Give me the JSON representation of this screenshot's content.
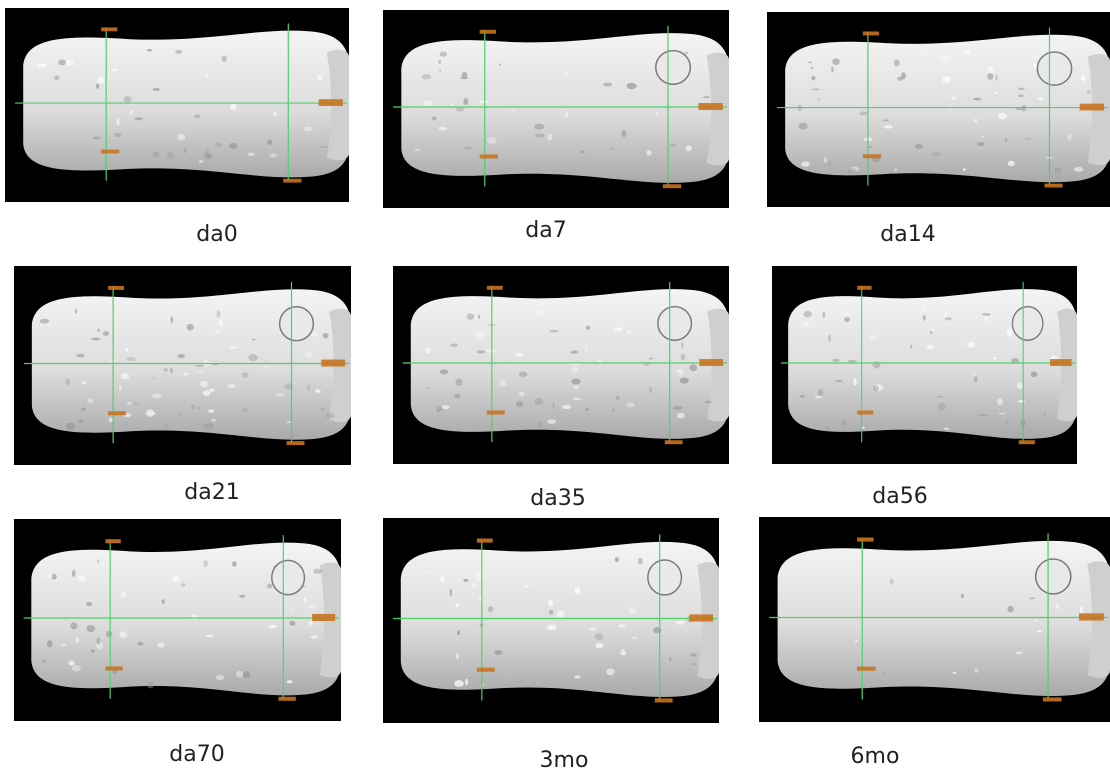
{
  "figure": {
    "background_color": "#000000",
    "bone_color": "#e6e6e6",
    "crosshair_color": "#4fd16a",
    "tag_color": "#c8731f",
    "panels": [
      {
        "id": "da0",
        "label": "da0"
      },
      {
        "id": "da7",
        "label": "da7"
      },
      {
        "id": "da14",
        "label": "da14"
      },
      {
        "id": "da21",
        "label": "da21"
      },
      {
        "id": "da35",
        "label": "da35"
      },
      {
        "id": "da56",
        "label": "da56"
      },
      {
        "id": "da70",
        "label": "da70"
      },
      {
        "id": "3mo",
        "label": "3mo"
      },
      {
        "id": "6mo",
        "label": "6mo"
      }
    ]
  }
}
